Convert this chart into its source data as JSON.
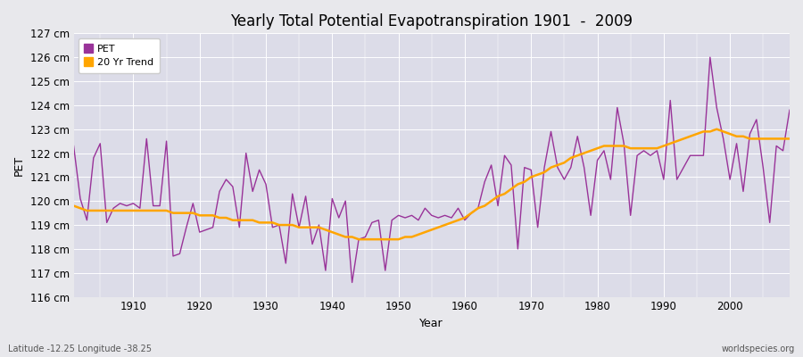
{
  "title": "Yearly Total Potential Evapotranspiration 1901  -  2009",
  "xlabel": "Year",
  "ylabel": "PET",
  "footnote_left": "Latitude -12.25 Longitude -38.25",
  "footnote_right": "worldspecies.org",
  "pet_color": "#993399",
  "trend_color": "#FFA500",
  "fig_bg_color": "#E8E8EC",
  "plot_bg_color": "#DCDCE8",
  "ylim": [
    116,
    127
  ],
  "yticks": [
    116,
    117,
    118,
    119,
    120,
    121,
    122,
    123,
    124,
    125,
    126,
    127
  ],
  "xlim": [
    1901,
    2009
  ],
  "years": [
    1901,
    1902,
    1903,
    1904,
    1905,
    1906,
    1907,
    1908,
    1909,
    1910,
    1911,
    1912,
    1913,
    1914,
    1915,
    1916,
    1917,
    1918,
    1919,
    1920,
    1921,
    1922,
    1923,
    1924,
    1925,
    1926,
    1927,
    1928,
    1929,
    1930,
    1931,
    1932,
    1933,
    1934,
    1935,
    1936,
    1937,
    1938,
    1939,
    1940,
    1941,
    1942,
    1943,
    1944,
    1945,
    1946,
    1947,
    1948,
    1949,
    1950,
    1951,
    1952,
    1953,
    1954,
    1955,
    1956,
    1957,
    1958,
    1959,
    1960,
    1961,
    1962,
    1963,
    1964,
    1965,
    1966,
    1967,
    1968,
    1969,
    1970,
    1971,
    1972,
    1973,
    1974,
    1975,
    1976,
    1977,
    1978,
    1979,
    1980,
    1981,
    1982,
    1983,
    1984,
    1985,
    1986,
    1987,
    1988,
    1989,
    1990,
    1991,
    1992,
    1993,
    1994,
    1995,
    1996,
    1997,
    1998,
    1999,
    2000,
    2001,
    2002,
    2003,
    2004,
    2005,
    2006,
    2007,
    2008,
    2009
  ],
  "pet_values": [
    122.3,
    120.1,
    119.2,
    121.8,
    122.4,
    119.1,
    119.7,
    119.9,
    119.8,
    119.9,
    119.7,
    122.6,
    119.8,
    119.8,
    122.5,
    117.7,
    117.8,
    118.9,
    119.9,
    118.7,
    118.8,
    118.9,
    120.4,
    120.9,
    120.6,
    118.9,
    122.0,
    120.4,
    121.3,
    120.7,
    118.9,
    119.0,
    117.4,
    120.3,
    118.9,
    120.2,
    118.2,
    119.0,
    117.1,
    120.1,
    119.3,
    120.0,
    116.6,
    118.4,
    118.5,
    119.1,
    119.2,
    117.1,
    119.2,
    119.4,
    119.3,
    119.4,
    119.2,
    119.7,
    119.4,
    119.3,
    119.4,
    119.3,
    119.7,
    119.2,
    119.5,
    119.7,
    120.8,
    121.5,
    119.8,
    121.9,
    121.5,
    118.0,
    121.4,
    121.3,
    118.9,
    121.4,
    122.9,
    121.4,
    120.9,
    121.4,
    122.7,
    121.4,
    119.4,
    121.7,
    122.1,
    120.9,
    123.9,
    122.4,
    119.4,
    121.9,
    122.1,
    121.9,
    122.1,
    120.9,
    124.2,
    120.9,
    121.4,
    121.9,
    121.9,
    121.9,
    126.0,
    123.9,
    122.6,
    120.9,
    122.4,
    120.4,
    122.8,
    123.4,
    121.4,
    119.1,
    122.3,
    122.1,
    123.8
  ],
  "trend_years": [
    1901,
    1902,
    1903,
    1904,
    1905,
    1906,
    1907,
    1908,
    1909,
    1910,
    1911,
    1912,
    1913,
    1914,
    1915,
    1916,
    1917,
    1918,
    1919,
    1920,
    1921,
    1922,
    1923,
    1924,
    1925,
    1926,
    1927,
    1928,
    1929,
    1930,
    1931,
    1932,
    1933,
    1934,
    1935,
    1936,
    1937,
    1938,
    1939,
    1940,
    1941,
    1942,
    1943,
    1944,
    1945,
    1946,
    1947,
    1948,
    1949,
    1950,
    1951,
    1952,
    1953,
    1954,
    1955,
    1956,
    1957,
    1958,
    1959,
    1960,
    1961,
    1962,
    1963,
    1964,
    1965,
    1966,
    1967,
    1968,
    1969,
    1970,
    1971,
    1972,
    1973,
    1974,
    1975,
    1976,
    1977,
    1978,
    1979,
    1980,
    1981,
    1982,
    1983,
    1984,
    1985,
    1986,
    1987,
    1988,
    1989,
    1990,
    1991,
    1992,
    1993,
    1994,
    1995,
    1996,
    1997,
    1998,
    1999,
    2000,
    2001,
    2002,
    2003,
    2004,
    2005,
    2006,
    2007,
    2008,
    2009
  ],
  "trend_values": [
    119.8,
    119.7,
    119.6,
    119.6,
    119.6,
    119.6,
    119.6,
    119.6,
    119.6,
    119.6,
    119.6,
    119.6,
    119.6,
    119.6,
    119.6,
    119.5,
    119.5,
    119.5,
    119.5,
    119.4,
    119.4,
    119.4,
    119.3,
    119.3,
    119.2,
    119.2,
    119.2,
    119.2,
    119.1,
    119.1,
    119.1,
    119.0,
    119.0,
    119.0,
    118.9,
    118.9,
    118.9,
    118.9,
    118.8,
    118.7,
    118.6,
    118.5,
    118.5,
    118.4,
    118.4,
    118.4,
    118.4,
    118.4,
    118.4,
    118.4,
    118.5,
    118.5,
    118.6,
    118.7,
    118.8,
    118.9,
    119.0,
    119.1,
    119.2,
    119.3,
    119.5,
    119.7,
    119.8,
    120.0,
    120.2,
    120.3,
    120.5,
    120.7,
    120.8,
    121.0,
    121.1,
    121.2,
    121.4,
    121.5,
    121.6,
    121.8,
    121.9,
    122.0,
    122.1,
    122.2,
    122.3,
    122.3,
    122.3,
    122.3,
    122.2,
    122.2,
    122.2,
    122.2,
    122.2,
    122.3,
    122.4,
    122.5,
    122.6,
    122.7,
    122.8,
    122.9,
    122.9,
    123.0,
    122.9,
    122.8,
    122.7,
    122.7,
    122.6,
    122.6,
    122.6,
    122.6,
    122.6,
    122.6,
    122.6
  ],
  "legend_pet_label": "PET",
  "legend_trend_label": "20 Yr Trend",
  "grid_color": "#FFFFFF",
  "tick_label_fontsize": 8.5,
  "axis_label_fontsize": 9,
  "title_fontsize": 12
}
